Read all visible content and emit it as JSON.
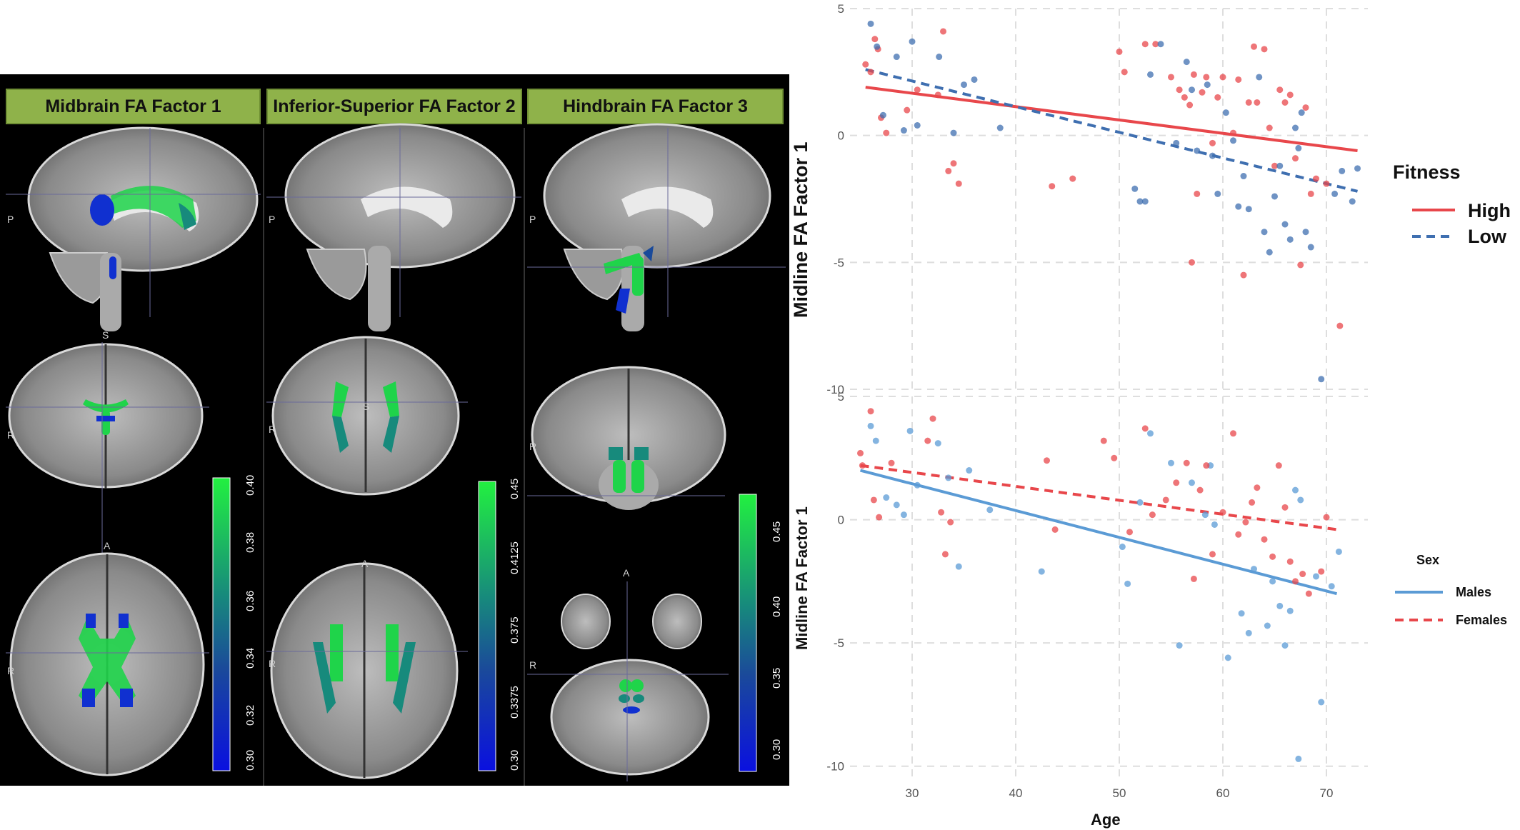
{
  "panels": [
    {
      "title": "Midbrain FA Factor 1",
      "colorbar_ticks": [
        "0.40",
        "0.38",
        "0.36",
        "0.34",
        "0.32",
        "0.30"
      ]
    },
    {
      "title": "Inferior-Superior FA Factor 2",
      "colorbar_ticks": [
        "0.45",
        "0.4125",
        "0.375",
        "0.3375",
        "0.30"
      ]
    },
    {
      "title": "Hindbrain FA Factor 3",
      "colorbar_ticks": [
        "0.45",
        "0.40",
        "0.35",
        "0.30"
      ]
    }
  ],
  "view_letters": {
    "posterior": "P",
    "superior": "S",
    "right": "R",
    "anterior": "A"
  },
  "colors": {
    "high": "#e8474b",
    "low": "#3f6fb0",
    "males": "#5b9bd5",
    "females": "#e8474b",
    "tract_green": "#1fd44a",
    "tract_blue": "#1030d0",
    "header_green": "#8fb24a"
  },
  "chart_data": [
    {
      "type": "scatter",
      "xlabel": "Age",
      "ylabel": "Midline FA Factor 1",
      "xlim": [
        24,
        74
      ],
      "ylim": [
        -10,
        5
      ],
      "xticks": [
        "30",
        "40",
        "50",
        "60",
        "70"
      ],
      "yticks": [
        "5",
        "0",
        "-5",
        "-10"
      ],
      "grid": true,
      "legend": {
        "title": "Fitness",
        "placement": "right"
      },
      "series": [
        {
          "name": "High",
          "color": "#e8474b",
          "line_style": "solid",
          "trend": [
            [
              25.5,
              1.9
            ],
            [
              73,
              -0.6
            ]
          ],
          "points": [
            [
              25.5,
              2.8
            ],
            [
              26,
              2.5
            ],
            [
              26.4,
              3.8
            ],
            [
              26.7,
              3.4
            ],
            [
              27,
              0.7
            ],
            [
              27.5,
              0.1
            ],
            [
              29.5,
              1
            ],
            [
              30.5,
              1.8
            ],
            [
              32.5,
              1.6
            ],
            [
              33,
              4.1
            ],
            [
              33.5,
              -1.4
            ],
            [
              34,
              -1.1
            ],
            [
              34.5,
              -1.9
            ],
            [
              43.5,
              -2
            ],
            [
              45.5,
              -1.7
            ],
            [
              50,
              3.3
            ],
            [
              50.5,
              2.5
            ],
            [
              52.5,
              3.6
            ],
            [
              53.5,
              3.6
            ],
            [
              55,
              2.3
            ],
            [
              55.8,
              1.8
            ],
            [
              56.3,
              1.5
            ],
            [
              56.8,
              1.2
            ],
            [
              57.2,
              2.4
            ],
            [
              57.5,
              -2.3
            ],
            [
              58,
              1.7
            ],
            [
              58.4,
              2.3
            ],
            [
              59,
              -0.3
            ],
            [
              59.5,
              1.5
            ],
            [
              60,
              2.3
            ],
            [
              61,
              0.1
            ],
            [
              61.5,
              2.2
            ],
            [
              62,
              -5.5
            ],
            [
              62.5,
              1.3
            ],
            [
              63,
              3.5
            ],
            [
              63.3,
              1.3
            ],
            [
              64,
              3.4
            ],
            [
              64.5,
              0.3
            ],
            [
              65,
              -1.2
            ],
            [
              65.5,
              1.8
            ],
            [
              66,
              1.3
            ],
            [
              66.5,
              1.6
            ],
            [
              67,
              -0.9
            ],
            [
              67.5,
              -5.1
            ],
            [
              68,
              1.1
            ],
            [
              68.5,
              -2.3
            ],
            [
              69,
              -1.7
            ],
            [
              70,
              -1.9
            ],
            [
              71.3,
              -7.5
            ],
            [
              57,
              -5
            ]
          ]
        },
        {
          "name": "Low",
          "color": "#3f6fb0",
          "line_style": "dashed",
          "trend": [
            [
              25.5,
              2.6
            ],
            [
              73,
              -2.2
            ]
          ],
          "points": [
            [
              26,
              4.4
            ],
            [
              26.6,
              3.5
            ],
            [
              27.2,
              0.8
            ],
            [
              28.5,
              3.1
            ],
            [
              29.2,
              0.2
            ],
            [
              30,
              3.7
            ],
            [
              30.5,
              0.4
            ],
            [
              32.6,
              3.1
            ],
            [
              34,
              0.1
            ],
            [
              35,
              2
            ],
            [
              36,
              2.2
            ],
            [
              38.5,
              0.3
            ],
            [
              51.5,
              -2.1
            ],
            [
              52,
              -2.6
            ],
            [
              52.5,
              -2.6
            ],
            [
              53,
              2.4
            ],
            [
              54,
              3.6
            ],
            [
              55.5,
              -0.3
            ],
            [
              56.5,
              2.9
            ],
            [
              57,
              1.8
            ],
            [
              57.5,
              -0.6
            ],
            [
              58.5,
              2
            ],
            [
              59,
              -0.8
            ],
            [
              59.5,
              -2.3
            ],
            [
              60.3,
              0.9
            ],
            [
              61,
              -0.2
            ],
            [
              61.5,
              -2.8
            ],
            [
              62,
              -1.6
            ],
            [
              62.5,
              -2.9
            ],
            [
              63.5,
              2.3
            ],
            [
              64,
              -3.8
            ],
            [
              64.5,
              -4.6
            ],
            [
              65,
              -2.4
            ],
            [
              65.5,
              -1.2
            ],
            [
              66,
              -3.5
            ],
            [
              66.5,
              -4.1
            ],
            [
              67,
              0.3
            ],
            [
              67.3,
              -0.5
            ],
            [
              67.6,
              0.9
            ],
            [
              68,
              -3.8
            ],
            [
              68.5,
              -4.4
            ],
            [
              69.5,
              -9.6
            ],
            [
              70.8,
              -2.3
            ],
            [
              71.5,
              -1.4
            ],
            [
              72.5,
              -2.6
            ],
            [
              73,
              -1.3
            ]
          ]
        }
      ]
    },
    {
      "type": "scatter",
      "xlabel": "Age",
      "ylabel": "Midline FA Factor 1",
      "xlim": [
        24,
        74
      ],
      "ylim": [
        -10.5,
        5
      ],
      "xticks": [
        "30",
        "40",
        "50",
        "60",
        "70"
      ],
      "yticks": [
        "5",
        "0",
        "-5",
        "-10"
      ],
      "grid": true,
      "legend": {
        "title": "Sex",
        "placement": "right"
      },
      "series": [
        {
          "name": "Males",
          "color": "#5b9bd5",
          "line_style": "solid",
          "trend": [
            [
              25,
              2
            ],
            [
              71,
              -3
            ]
          ],
          "points": [
            [
              26,
              3.8
            ],
            [
              26.5,
              3.2
            ],
            [
              27.5,
              0.9
            ],
            [
              28.5,
              0.6
            ],
            [
              29.2,
              0.2
            ],
            [
              29.8,
              3.6
            ],
            [
              30.5,
              1.4
            ],
            [
              32.5,
              3.1
            ],
            [
              33.5,
              1.7
            ],
            [
              34.5,
              -1.9
            ],
            [
              35.5,
              2
            ],
            [
              37.5,
              0.4
            ],
            [
              42.5,
              -2.1
            ],
            [
              50.3,
              -1.1
            ],
            [
              50.8,
              -2.6
            ],
            [
              52,
              0.7
            ],
            [
              53,
              3.5
            ],
            [
              55,
              2.3
            ],
            [
              55.8,
              -5.1
            ],
            [
              57,
              1.5
            ],
            [
              58.3,
              0.2
            ],
            [
              58.8,
              2.2
            ],
            [
              59.2,
              -0.2
            ],
            [
              60.5,
              -5.6
            ],
            [
              61.8,
              -3.8
            ],
            [
              62.5,
              -4.6
            ],
            [
              63,
              -2
            ],
            [
              64.3,
              -4.3
            ],
            [
              64.8,
              -2.5
            ],
            [
              65.5,
              -3.5
            ],
            [
              66,
              -5.1
            ],
            [
              66.5,
              -3.7
            ],
            [
              67,
              1.2
            ],
            [
              67.5,
              0.8
            ],
            [
              67.3,
              -9.7
            ],
            [
              69,
              -2.3
            ],
            [
              69.5,
              -7.4
            ],
            [
              70.5,
              -2.7
            ],
            [
              71.2,
              -1.3
            ]
          ]
        },
        {
          "name": "Females",
          "color": "#e8474b",
          "line_style": "dashed",
          "trend": [
            [
              25,
              2.2
            ],
            [
              71,
              -0.4
            ]
          ],
          "points": [
            [
              25,
              2.7
            ],
            [
              25.2,
              2.2
            ],
            [
              26,
              4.4
            ],
            [
              26.3,
              0.8
            ],
            [
              26.8,
              0.1
            ],
            [
              28,
              2.3
            ],
            [
              31.5,
              3.2
            ],
            [
              32,
              4.1
            ],
            [
              32.8,
              0.3
            ],
            [
              33.2,
              -1.4
            ],
            [
              33.7,
              -0.1
            ],
            [
              43,
              2.4
            ],
            [
              43.8,
              -0.4
            ],
            [
              48.5,
              3.2
            ],
            [
              49.5,
              2.5
            ],
            [
              51,
              -0.5
            ],
            [
              52.5,
              3.7
            ],
            [
              53.2,
              0.2
            ],
            [
              54.5,
              0.8
            ],
            [
              55.5,
              1.5
            ],
            [
              56.5,
              2.3
            ],
            [
              57.2,
              -2.4
            ],
            [
              57.8,
              1.2
            ],
            [
              58.4,
              2.2
            ],
            [
              59,
              -1.4
            ],
            [
              60,
              0.3
            ],
            [
              61,
              3.5
            ],
            [
              61.5,
              -0.6
            ],
            [
              62.2,
              -0.1
            ],
            [
              62.8,
              0.7
            ],
            [
              63.3,
              1.3
            ],
            [
              64,
              -0.8
            ],
            [
              64.8,
              -1.5
            ],
            [
              65.4,
              2.2
            ],
            [
              66,
              0.5
            ],
            [
              66.5,
              -1.7
            ],
            [
              67,
              -2.5
            ],
            [
              67.7,
              -2.2
            ],
            [
              68.3,
              -3
            ],
            [
              69.5,
              -2.1
            ],
            [
              70,
              0.1
            ]
          ]
        }
      ]
    }
  ]
}
